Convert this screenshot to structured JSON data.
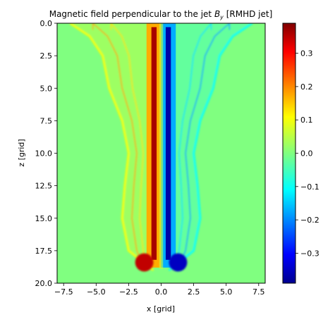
{
  "chart_data": {
    "type": "heatmap",
    "title": {
      "prefix": "Magnetic field perpendicular to the jet ",
      "symbol": "B",
      "subscript": "y",
      "suffix": " [RMHD jet]"
    },
    "xlabel": "x [grid]",
    "ylabel": "z [grid]",
    "xlim": [
      -8.0,
      8.0
    ],
    "ylim": [
      20.0,
      0.0
    ],
    "x_ticks": [
      {
        "value": -7.5,
        "label": "−7.5"
      },
      {
        "value": -5.0,
        "label": "−5.0"
      },
      {
        "value": -2.5,
        "label": "−2.5"
      },
      {
        "value": 0.0,
        "label": "0.0"
      },
      {
        "value": 2.5,
        "label": "2.5"
      },
      {
        "value": 5.0,
        "label": "5.0"
      },
      {
        "value": 7.5,
        "label": "7.5"
      }
    ],
    "y_ticks": [
      {
        "value": 0.0,
        "label": "0.0"
      },
      {
        "value": 2.5,
        "label": "2.5"
      },
      {
        "value": 5.0,
        "label": "5.0"
      },
      {
        "value": 7.5,
        "label": "7.5"
      },
      {
        "value": 10.0,
        "label": "10.0"
      },
      {
        "value": 12.5,
        "label": "12.5"
      },
      {
        "value": 15.0,
        "label": "15.0"
      },
      {
        "value": 17.5,
        "label": "17.5"
      },
      {
        "value": 20.0,
        "label": "20.0"
      }
    ],
    "colorbar": {
      "colormap": "jet",
      "vmin": -0.39,
      "vmax": 0.39,
      "ticks": [
        {
          "value": 0.3,
          "label": "0.3"
        },
        {
          "value": 0.2,
          "label": "0.2"
        },
        {
          "value": 0.1,
          "label": "0.1"
        },
        {
          "value": 0.0,
          "label": "0.0"
        },
        {
          "value": -0.1,
          "label": "−0.1"
        },
        {
          "value": -0.2,
          "label": "−0.2"
        },
        {
          "value": -0.3,
          "label": "−0.3"
        }
      ]
    },
    "background_value": 0.0,
    "features": {
      "jet_core": {
        "z_start": 0.0,
        "z_end": 18.8,
        "half_width": 0.9,
        "peak_value": 0.36
      },
      "cocoon_edge": [
        {
          "z": 0.0,
          "x": 7.0
        },
        {
          "z": 1.0,
          "x": 5.5
        },
        {
          "z": 2.5,
          "x": 4.5
        },
        {
          "z": 5.0,
          "x": 4.0
        },
        {
          "z": 7.5,
          "x": 3.0
        },
        {
          "z": 10.0,
          "x": 2.5
        },
        {
          "z": 12.5,
          "x": 2.8
        },
        {
          "z": 15.0,
          "x": 3.0
        },
        {
          "z": 17.5,
          "x": 2.5
        },
        {
          "z": 19.0,
          "x": 0.6
        }
      ],
      "cocoon_value": 0.09,
      "head_lobe": {
        "z": 18.4,
        "x": 1.3,
        "value": 0.34
      }
    }
  }
}
